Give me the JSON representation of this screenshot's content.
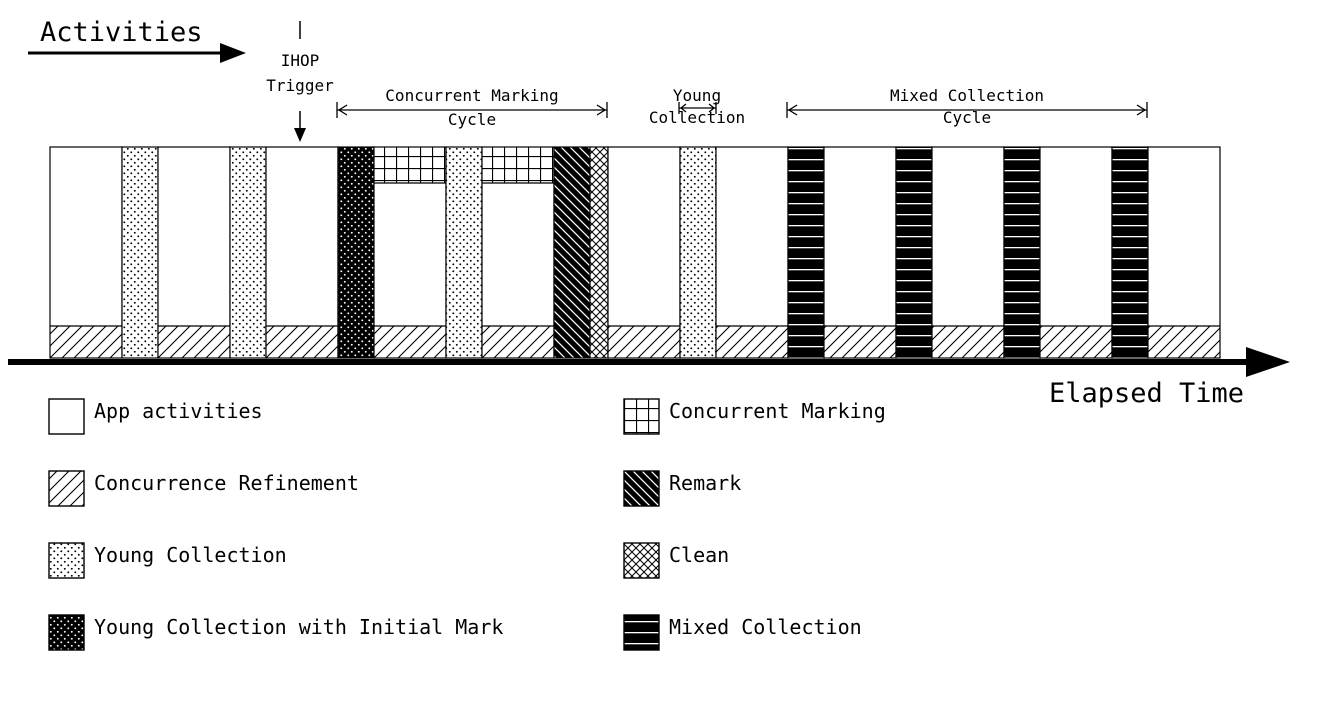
{
  "title": "Activities",
  "xaxis_label": "Elapsed Time",
  "trigger": {
    "line1": "IHOP",
    "line2": "Trigger"
  },
  "phases": [
    {
      "line1": "Concurrent Marking",
      "line2": "Cycle"
    },
    {
      "line1": "Young",
      "line2": "Collection"
    },
    {
      "line1": "Mixed Collection",
      "line2": "Cycle"
    }
  ],
  "legend": [
    {
      "label": "App activities",
      "pattern": "app"
    },
    {
      "label": "Concurrence Refinement",
      "pattern": "refine"
    },
    {
      "label": "Young Collection",
      "pattern": "young"
    },
    {
      "label": "Young Collection with Initial Mark",
      "pattern": "initial"
    },
    {
      "label": "Concurrent Marking",
      "pattern": "marking"
    },
    {
      "label": "Remark",
      "pattern": "remark"
    },
    {
      "label": "Clean",
      "pattern": "clean"
    },
    {
      "label": "Mixed Collection",
      "pattern": "mixed"
    }
  ],
  "timeline": [
    "app",
    "young",
    "app",
    "young",
    "app",
    "initial",
    "app-marking",
    "young",
    "app-marking",
    "remark",
    "clean",
    "app",
    "young",
    "app",
    "mixed",
    "app",
    "mixed",
    "app",
    "mixed",
    "app",
    "mixed",
    "app"
  ]
}
